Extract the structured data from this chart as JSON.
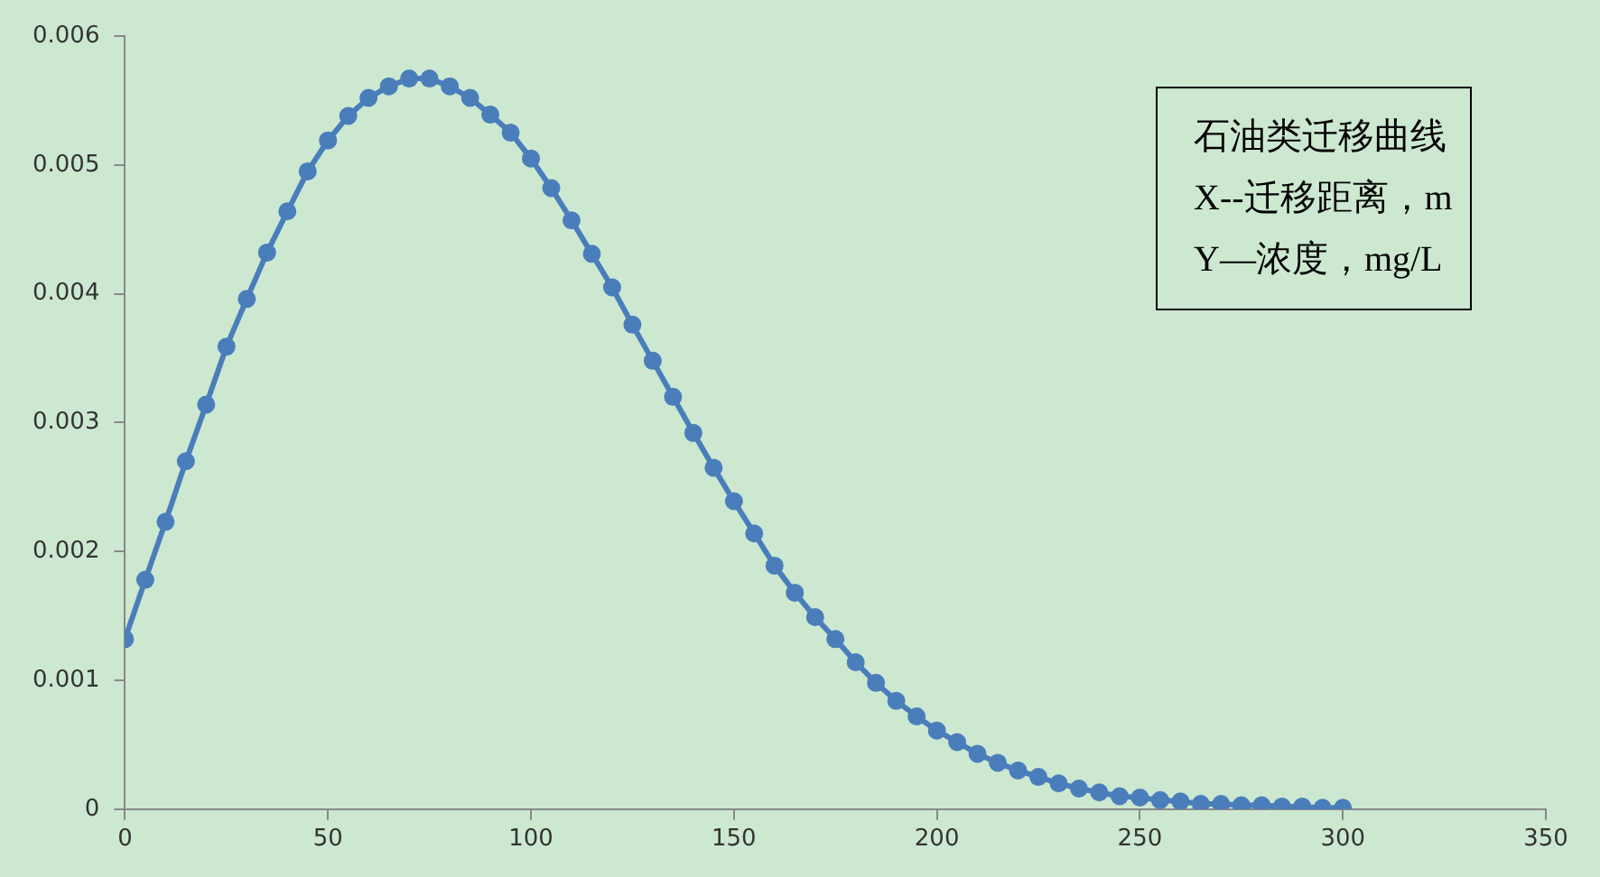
{
  "chart_data": {
    "type": "line",
    "x": [
      0,
      5,
      10,
      15,
      20,
      25,
      30,
      35,
      40,
      45,
      50,
      55,
      60,
      65,
      70,
      75,
      80,
      85,
      90,
      95,
      100,
      105,
      110,
      115,
      120,
      125,
      130,
      135,
      140,
      145,
      150,
      155,
      160,
      165,
      170,
      175,
      180,
      185,
      190,
      195,
      200,
      205,
      210,
      215,
      220,
      225,
      230,
      235,
      240,
      245,
      250,
      255,
      260,
      265,
      270,
      275,
      280,
      285,
      290,
      295,
      300
    ],
    "series": [
      {
        "color": "#4a7ebb",
        "values": [
          0.00132,
          0.00178,
          0.00223,
          0.0027,
          0.00314,
          0.00359,
          0.00396,
          0.00432,
          0.00464,
          0.00495,
          0.00519,
          0.00538,
          0.00552,
          0.00561,
          0.00567,
          0.00567,
          0.00561,
          0.00552,
          0.00539,
          0.00525,
          0.00505,
          0.00482,
          0.00457,
          0.00431,
          0.00405,
          0.00376,
          0.00348,
          0.0032,
          0.00292,
          0.00265,
          0.00239,
          0.00214,
          0.00189,
          0.00168,
          0.00149,
          0.00132,
          0.00114,
          0.00098,
          0.00084,
          0.00072,
          0.00061,
          0.00052,
          0.00043,
          0.00036,
          0.0003,
          0.00025,
          0.0002,
          0.00016,
          0.00013,
          0.0001,
          9e-05,
          7e-05,
          6e-05,
          4e-05,
          4e-05,
          3e-05,
          3e-05,
          2e-05,
          2e-05,
          1e-05,
          1e-05
        ]
      }
    ],
    "xlim": [
      0,
      350
    ],
    "xticks": [
      0,
      50,
      100,
      150,
      200,
      250,
      300,
      350
    ],
    "ylim": [
      0,
      0.006
    ],
    "yticks": [
      0,
      0.001,
      0.002,
      0.003,
      0.004,
      0.005,
      0.006
    ],
    "annotations": [
      "石油类迁移曲线",
      "X--迁移距离，m",
      "Y—浓度，mg/L"
    ],
    "grid": false,
    "legend": false,
    "marker": "circle",
    "line_style": "solid"
  }
}
